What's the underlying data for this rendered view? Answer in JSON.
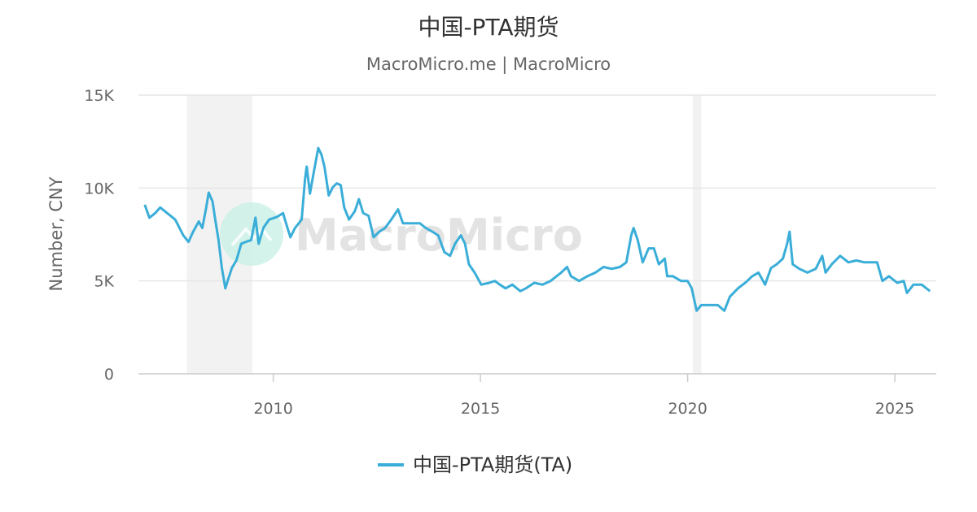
{
  "chart_data": {
    "type": "line",
    "title": "中国-PTA期货",
    "subtitle": "MacroMicro.me | MacroMicro",
    "ylabel": "Number, CNY",
    "xlabel": "",
    "xlim": [
      "2006-09-30",
      "2026-01-01"
    ],
    "ylim": [
      0,
      15000
    ],
    "y_ticks": [
      {
        "v": 0,
        "label": "0"
      },
      {
        "v": 5000,
        "label": "5K"
      },
      {
        "v": 10000,
        "label": "10K"
      },
      {
        "v": 15000,
        "label": "15K"
      }
    ],
    "x_ticks": [
      {
        "v": "2010-01-01",
        "label": "2010"
      },
      {
        "v": "2015-01-01",
        "label": "2015"
      },
      {
        "v": "2020-01-01",
        "label": "2020"
      },
      {
        "v": "2025-01-01",
        "label": "2025"
      }
    ],
    "grid": true,
    "legend_position": "bottom",
    "shaded_periods": [
      [
        "2007-12-01",
        "2009-06-30"
      ],
      [
        "2020-02-15",
        "2020-05-01"
      ]
    ],
    "watermark": "MacroMicro",
    "colors": {
      "line": "#3aaed8",
      "grid": "#e6e6e6",
      "shade": "#f2f2f2",
      "logo": "#c8f0e6"
    },
    "series": [
      {
        "name": "中国-PTA期货(TA)",
        "x": [
          "2006-11-25",
          "2007-01-05",
          "2007-02-25",
          "2007-04-10",
          "2007-06-10",
          "2007-08-20",
          "2007-10-30",
          "2007-12-15",
          "2008-01-25",
          "2008-03-15",
          "2008-04-15",
          "2008-05-20",
          "2008-06-10",
          "2008-07-15",
          "2008-08-05",
          "2008-09-05",
          "2008-10-05",
          "2008-11-05",
          "2008-11-25",
          "2009-01-01",
          "2009-02-10",
          "2009-03-25",
          "2009-05-05",
          "2009-06-20",
          "2009-07-28",
          "2009-08-25",
          "2009-10-05",
          "2009-11-25",
          "2010-02-05",
          "2010-03-28",
          "2010-05-01",
          "2010-06-01",
          "2010-07-12",
          "2010-09-08",
          "2010-10-08",
          "2010-10-22",
          "2010-11-20",
          "2010-12-25",
          "2011-02-01",
          "2011-03-01",
          "2011-03-28",
          "2011-05-05",
          "2011-06-10",
          "2011-07-15",
          "2011-08-18",
          "2011-09-18",
          "2011-10-30",
          "2011-12-20",
          "2012-01-25",
          "2012-03-03",
          "2012-04-20",
          "2012-06-03",
          "2012-07-23",
          "2012-09-12",
          "2012-11-06",
          "2013-01-05",
          "2013-02-17",
          "2013-05-07",
          "2013-07-17",
          "2013-09-06",
          "2013-11-03",
          "2013-12-25",
          "2014-02-17",
          "2014-04-08",
          "2014-05-22",
          "2014-07-12",
          "2014-08-18",
          "2014-09-21",
          "2014-11-10",
          "2015-01-08",
          "2015-03-20",
          "2015-05-08",
          "2015-06-20",
          "2015-08-10",
          "2015-10-08",
          "2015-12-18",
          "2016-02-06",
          "2016-04-19",
          "2016-07-01",
          "2016-09-10",
          "2016-12-13",
          "2017-02-03",
          "2017-03-10",
          "2017-05-19",
          "2017-07-31",
          "2017-10-11",
          "2017-12-20",
          "2018-03-03",
          "2018-05-15",
          "2018-07-10",
          "2018-08-22",
          "2018-09-12",
          "2018-10-18",
          "2018-12-01",
          "2019-01-22",
          "2019-03-10",
          "2019-04-22",
          "2019-06-13",
          "2019-07-05",
          "2019-08-25",
          "2019-11-03",
          "2020-01-01",
          "2020-02-06",
          "2020-03-20",
          "2020-05-01",
          "2020-07-12",
          "2020-09-23",
          "2020-11-20",
          "2021-01-08",
          "2021-03-20",
          "2021-06-02",
          "2021-07-23",
          "2021-09-17",
          "2021-11-14",
          "2022-01-05",
          "2022-02-25",
          "2022-04-20",
          "2022-05-27",
          "2022-06-18",
          "2022-07-15",
          "2022-09-12",
          "2022-11-22",
          "2023-02-03",
          "2023-04-01",
          "2023-05-01",
          "2023-06-25",
          "2023-09-06",
          "2023-11-18",
          "2024-01-27",
          "2024-04-08",
          "2024-07-28",
          "2024-09-14",
          "2024-11-10",
          "2025-01-22",
          "2025-03-20",
          "2025-04-18",
          "2025-06-14",
          "2025-08-25",
          "2025-11-06"
        ],
        "values": [
          9100,
          8400,
          8650,
          8950,
          8650,
          8300,
          7450,
          7100,
          7650,
          8200,
          7850,
          8950,
          9750,
          9270,
          8400,
          7200,
          5700,
          4600,
          5000,
          5700,
          6100,
          7000,
          7100,
          7200,
          8400,
          7000,
          7850,
          8300,
          8450,
          8650,
          7950,
          7350,
          7850,
          8300,
          10500,
          11150,
          9700,
          10900,
          12150,
          11800,
          11150,
          9600,
          10050,
          10250,
          10150,
          8950,
          8300,
          8750,
          9400,
          8650,
          8500,
          7350,
          7650,
          7850,
          8300,
          8850,
          8100,
          8100,
          8100,
          7850,
          7650,
          7450,
          6550,
          6350,
          7000,
          7450,
          7000,
          5900,
          5450,
          4800,
          4900,
          5000,
          4800,
          4600,
          4800,
          4450,
          4600,
          4900,
          4800,
          5000,
          5450,
          5750,
          5250,
          5000,
          5250,
          5450,
          5750,
          5650,
          5750,
          6000,
          7450,
          7850,
          7200,
          6000,
          6750,
          6750,
          5900,
          6200,
          5250,
          5250,
          5000,
          5000,
          4600,
          3400,
          3700,
          3700,
          3700,
          3400,
          4150,
          4600,
          4950,
          5250,
          5450,
          4800,
          5700,
          5900,
          6200,
          7000,
          7650,
          5900,
          5650,
          5450,
          5650,
          6350,
          5450,
          5900,
          6350,
          6000,
          6100,
          6000,
          6000,
          5000,
          5250,
          4900,
          5000,
          4350,
          4800,
          4800,
          4450
        ]
      }
    ]
  }
}
